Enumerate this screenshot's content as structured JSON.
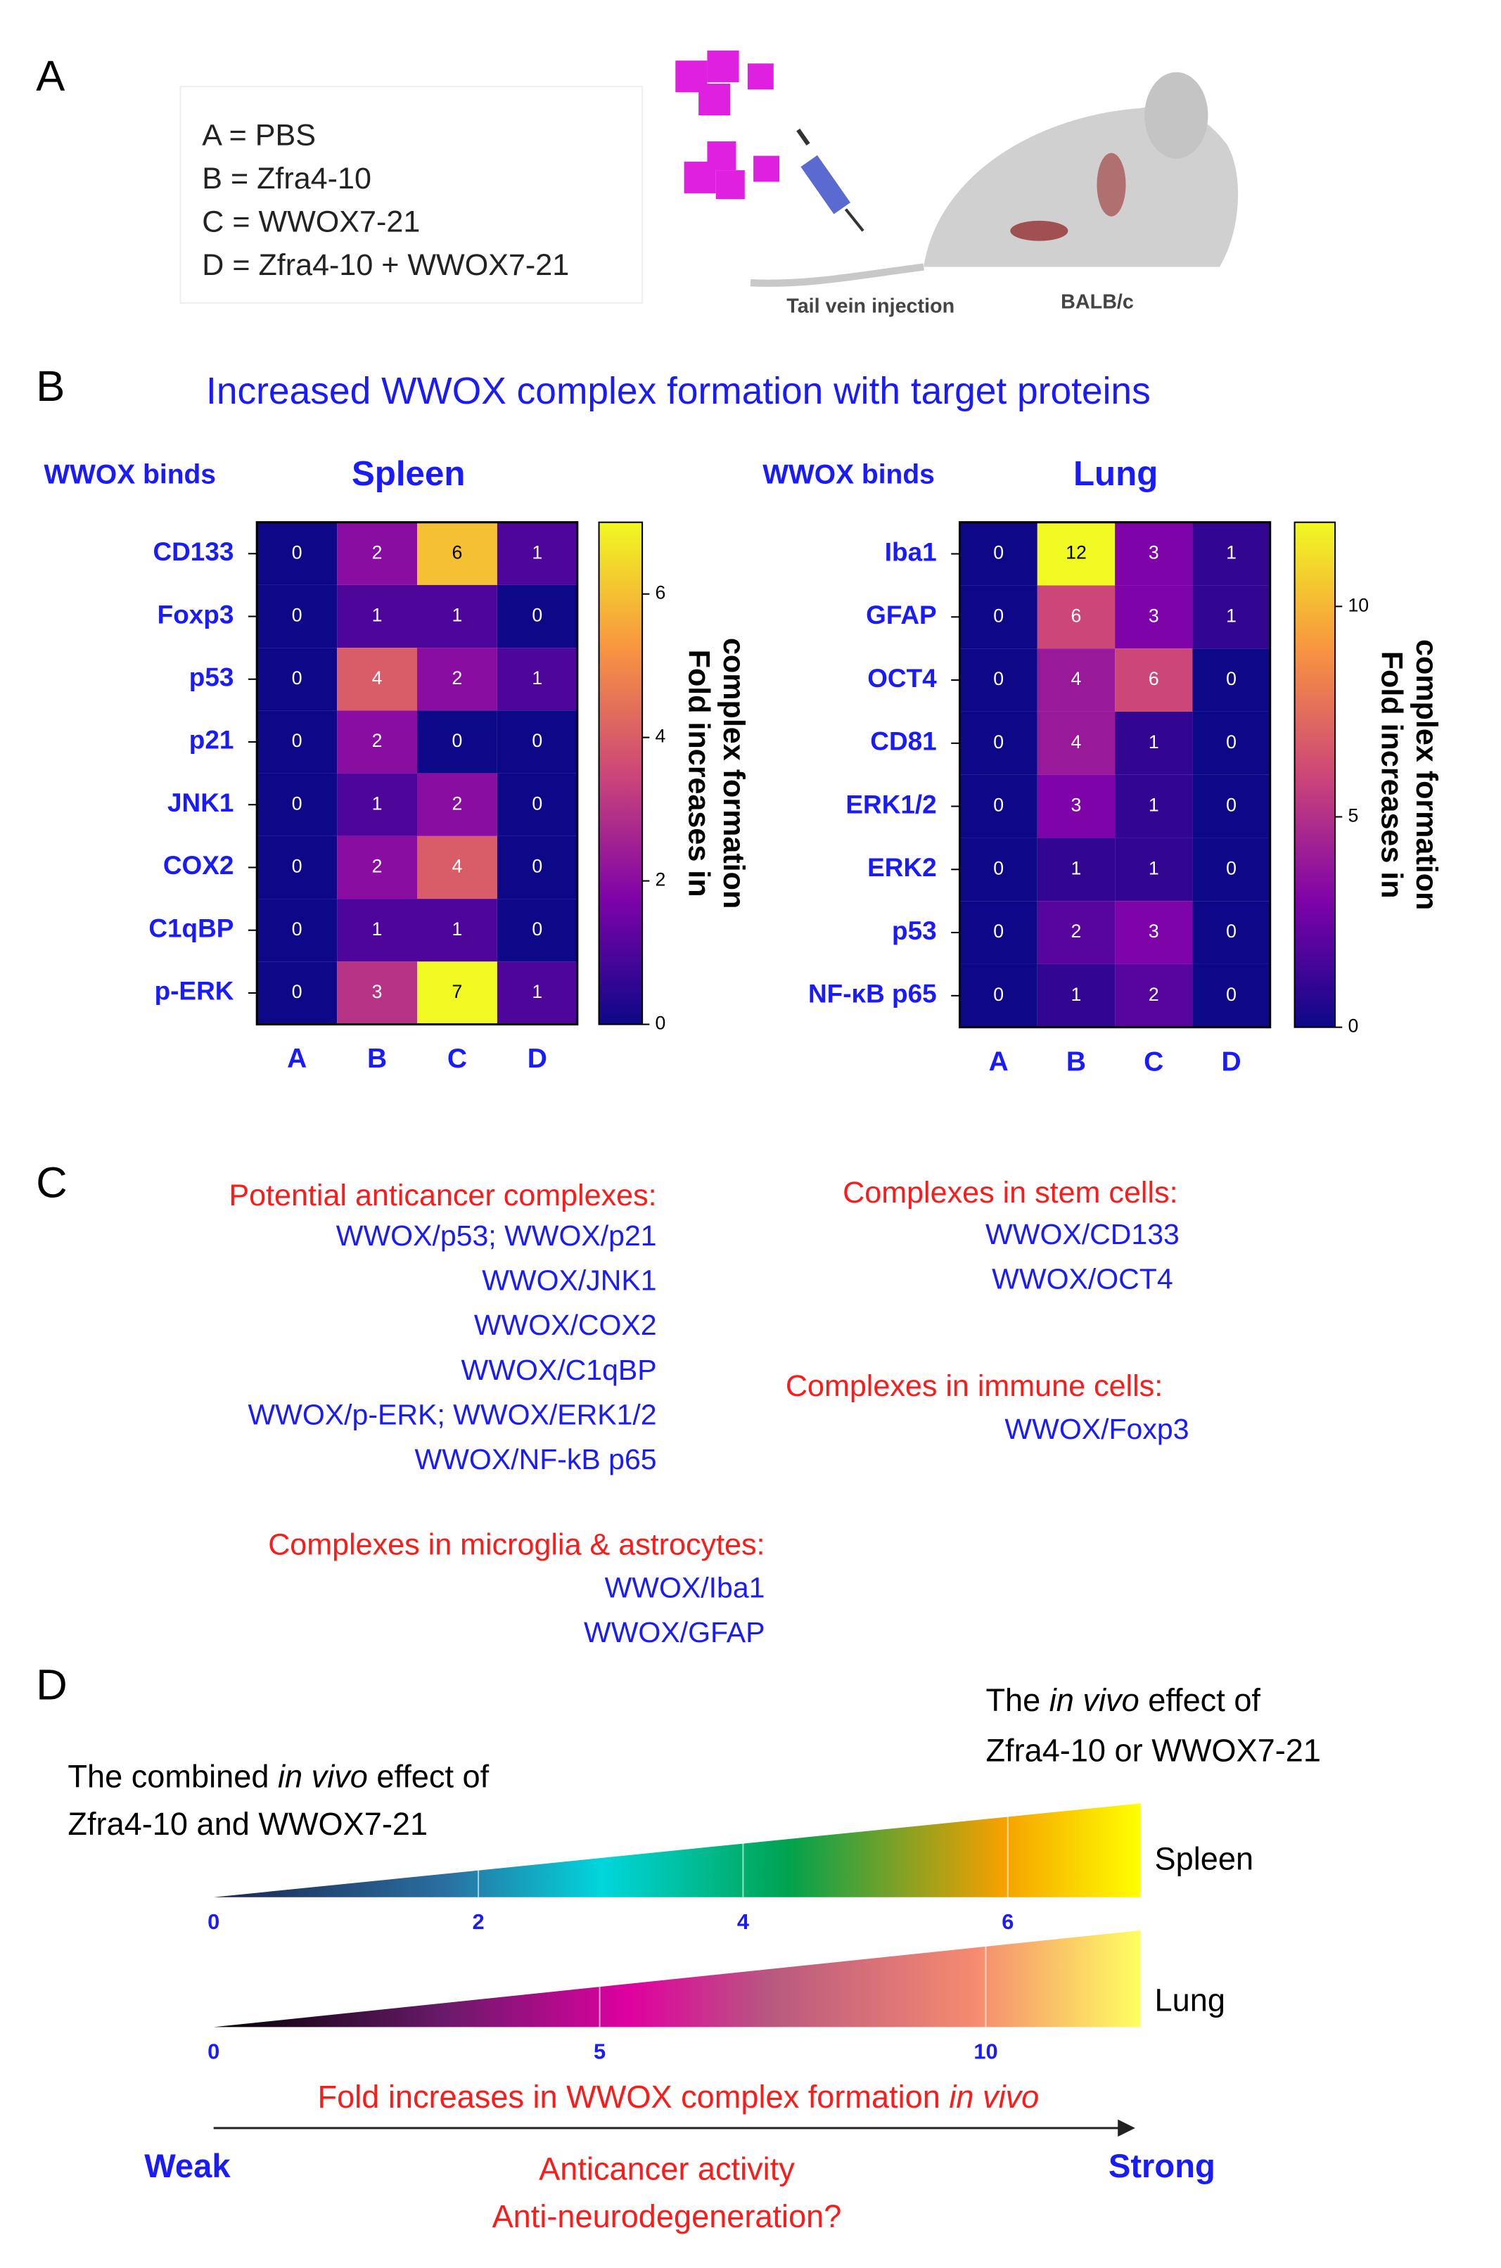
{
  "panel_a": {
    "letter": "A",
    "legend": [
      "A = PBS",
      "B = Zfra4-10",
      "C = WWOX7-21",
      "D = Zfra4-10 + WWOX7-21"
    ],
    "injection_label": "Tail vein injection",
    "strain_label": "BALB/c"
  },
  "panel_b": {
    "letter": "B",
    "title": "Increased WWOX complex formation with target proteins"
  },
  "chart_data": [
    {
      "type": "heatmap",
      "title": "Spleen",
      "y_label": "WWOX binds",
      "x": [
        "A",
        "B",
        "C",
        "D"
      ],
      "categories": [
        "CD133",
        "Foxp3",
        "p53",
        "p21",
        "JNK1",
        "COX2",
        "C1qBP",
        "p-ERK"
      ],
      "values": [
        [
          0,
          2,
          6,
          1
        ],
        [
          0,
          1,
          1,
          0
        ],
        [
          0,
          4,
          2,
          1
        ],
        [
          0,
          2,
          0,
          0
        ],
        [
          0,
          1,
          2,
          0
        ],
        [
          0,
          2,
          4,
          0
        ],
        [
          0,
          1,
          1,
          0
        ],
        [
          0,
          3,
          7,
          1
        ]
      ],
      "colormap": "plasma",
      "zlim": [
        0,
        7
      ],
      "zticks": [
        0,
        2,
        4,
        6
      ],
      "colorbar_label": [
        "Fold increases in",
        "complex formation"
      ]
    },
    {
      "type": "heatmap",
      "title": "Lung",
      "y_label": "WWOX binds",
      "x": [
        "A",
        "B",
        "C",
        "D"
      ],
      "categories": [
        "Iba1",
        "GFAP",
        "OCT4",
        "CD81",
        "ERK1/2",
        "ERK2",
        "p53",
        "NF-κB p65"
      ],
      "values": [
        [
          0,
          12,
          3,
          1
        ],
        [
          0,
          6,
          3,
          1
        ],
        [
          0,
          4,
          6,
          0
        ],
        [
          0,
          4,
          1,
          0
        ],
        [
          0,
          3,
          1,
          0
        ],
        [
          0,
          1,
          1,
          0
        ],
        [
          0,
          2,
          3,
          0
        ],
        [
          0,
          1,
          2,
          0
        ]
      ],
      "colormap": "plasma",
      "zlim": [
        0,
        12
      ],
      "zticks": [
        0,
        5,
        10
      ],
      "colorbar_label": [
        "Fold increases in",
        "complex formation"
      ]
    }
  ],
  "panel_c": {
    "letter": "C",
    "groups": [
      {
        "heading": "Potential anticancer complexes:",
        "items": [
          "WWOX/p53; WWOX/p21",
          "WWOX/JNK1",
          "WWOX/COX2",
          "WWOX/C1qBP",
          "WWOX/p-ERK; WWOX/ERK1/2",
          "WWOX/NF-kB p65"
        ]
      },
      {
        "heading": "Complexes in microglia & astrocytes:",
        "items": [
          "WWOX/Iba1",
          "WWOX/GFAP"
        ]
      },
      {
        "heading": "Complexes in stem cells:",
        "items": [
          "WWOX/CD133",
          "WWOX/OCT4"
        ]
      },
      {
        "heading": "Complexes in immune cells:",
        "items": [
          "WWOX/Foxp3"
        ]
      }
    ]
  },
  "panel_d": {
    "letter": "D",
    "right_label": [
      [
        "The ",
        "in vivo",
        " effect of"
      ],
      [
        "Zfra4-10 or WWOX7-21"
      ]
    ],
    "left_label": [
      [
        "The combined ",
        "in vivo",
        " effect of"
      ],
      [
        "Zfra4-10 and WWOX7-21"
      ]
    ],
    "scales": [
      {
        "name": "Spleen",
        "xlim": [
          0,
          7
        ],
        "xticks": [
          0,
          2,
          4,
          6
        ]
      },
      {
        "name": "Lung",
        "xlim": [
          0,
          12
        ],
        "xticks": [
          0,
          5,
          10
        ]
      }
    ],
    "axis_title": [
      "Fold increases in WWOX complex formation ",
      "in vivo"
    ],
    "weak": "Weak",
    "strong": "Strong",
    "activity": [
      "Anticancer activity",
      "Anti-neurodegeneration?"
    ]
  }
}
